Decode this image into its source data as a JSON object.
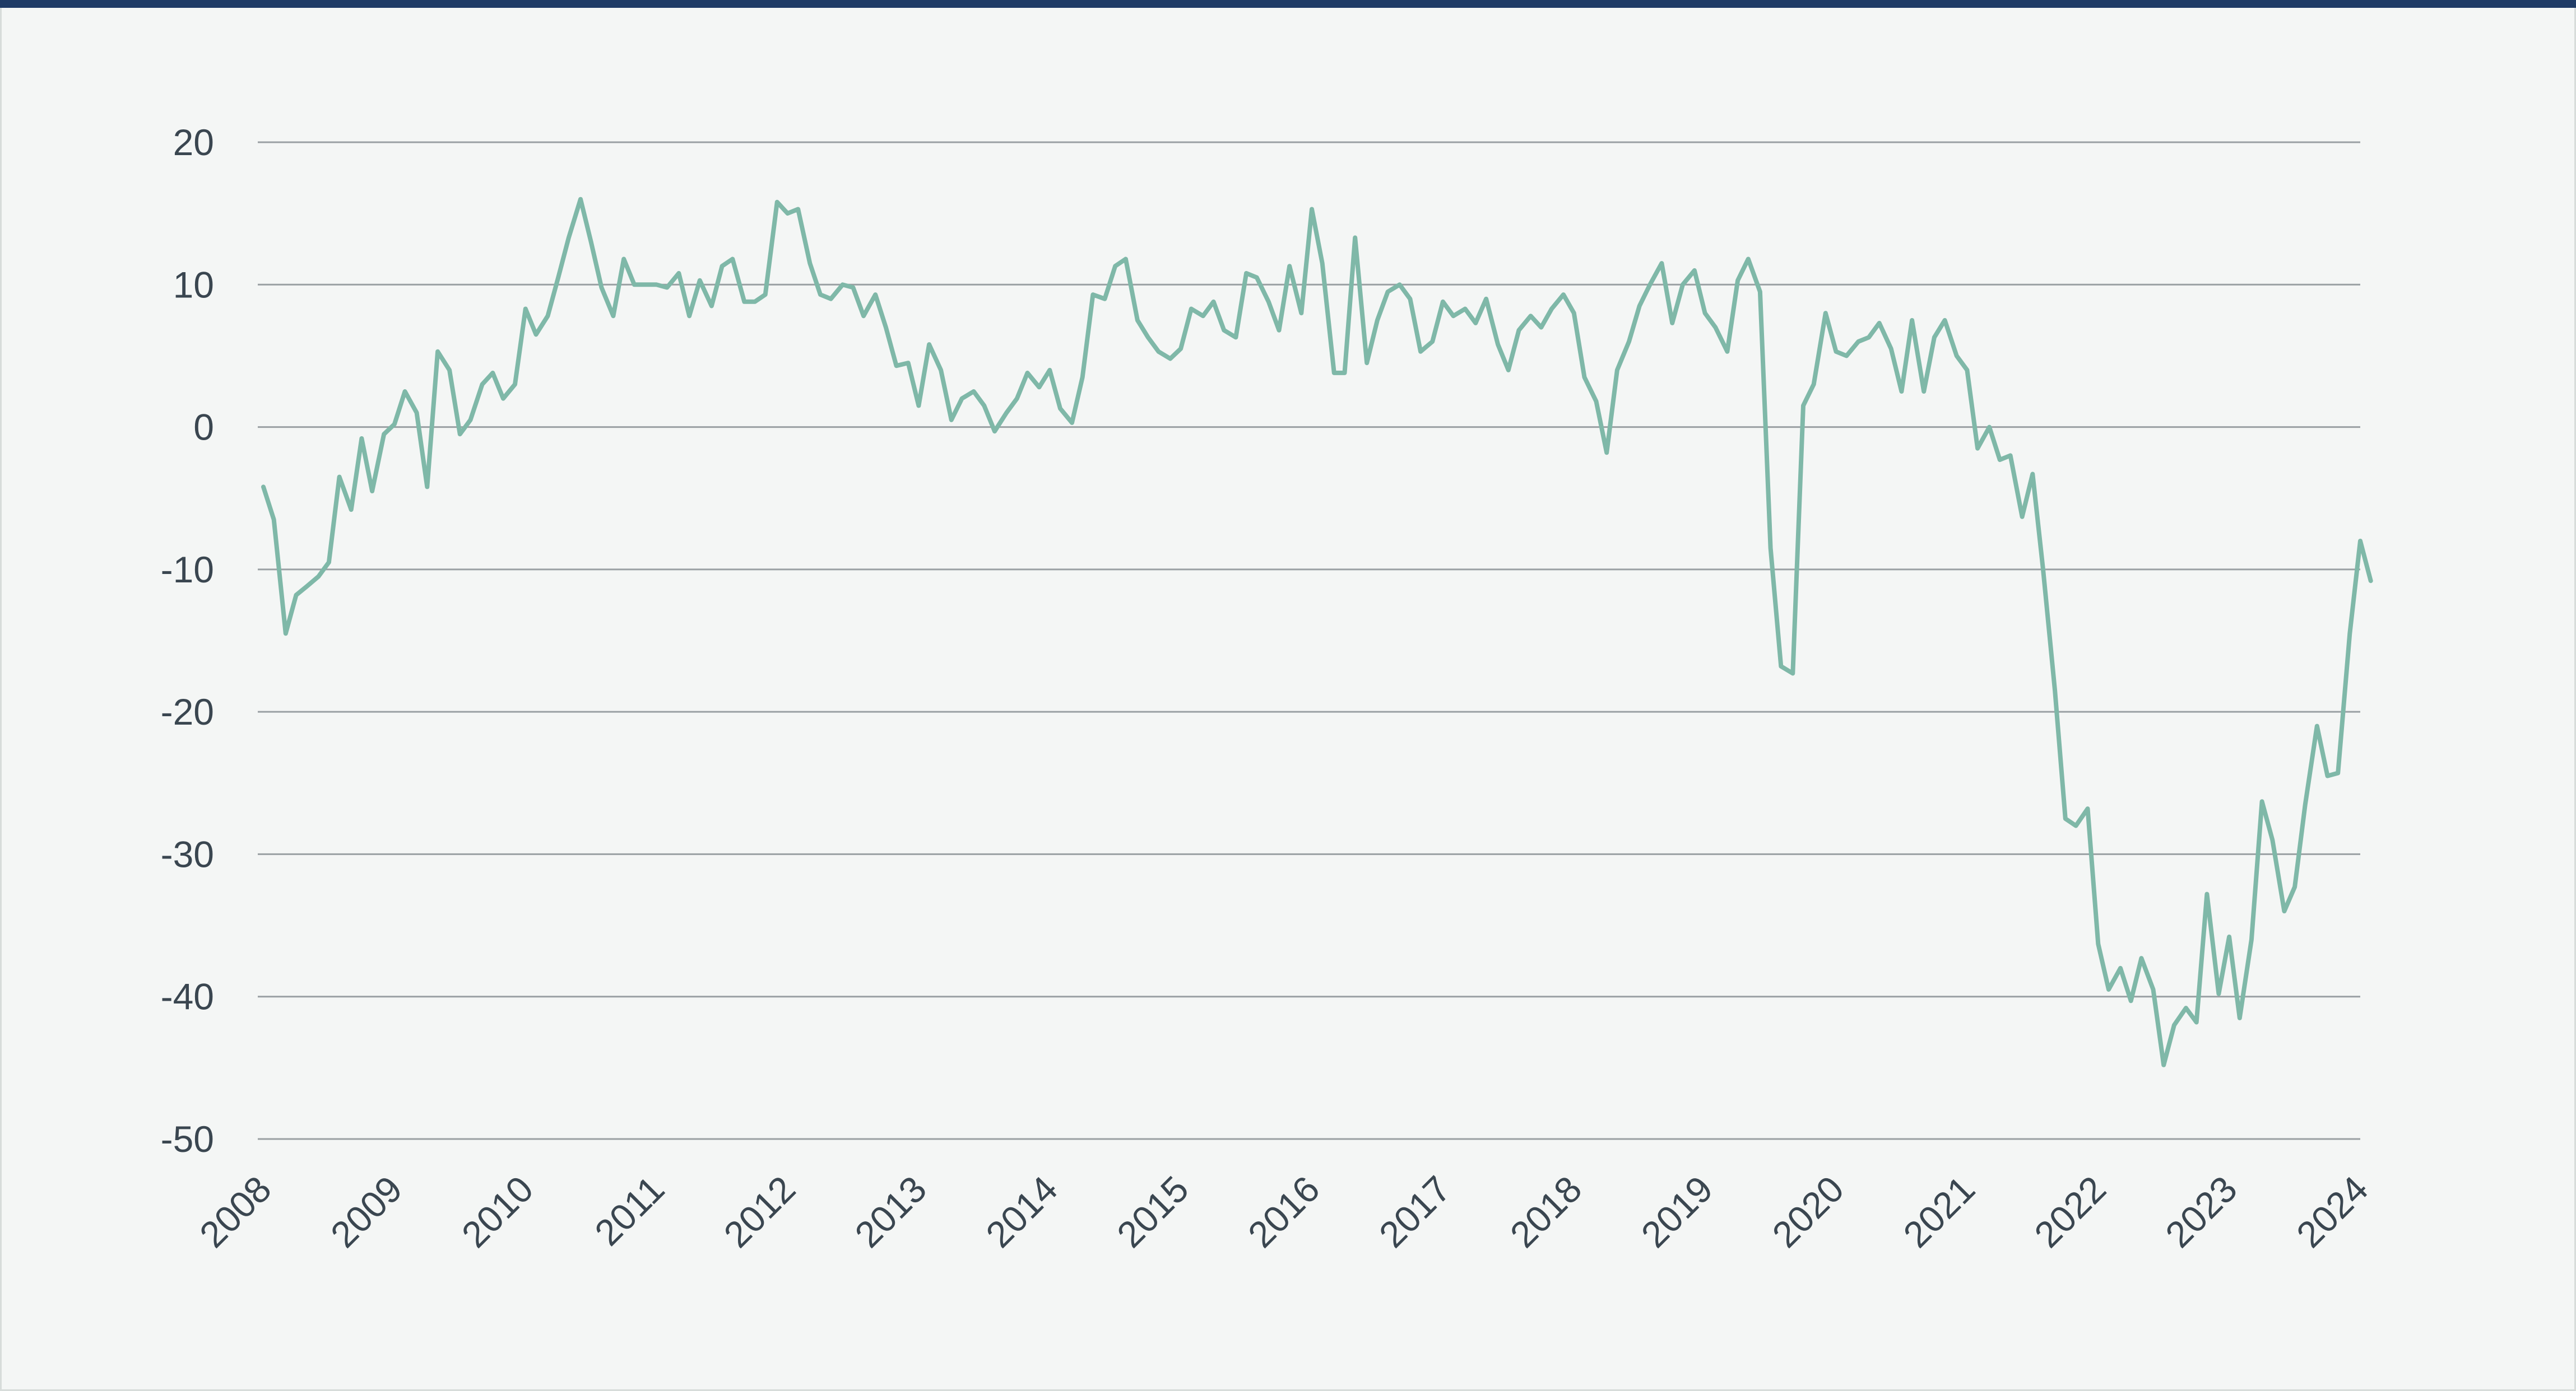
{
  "colors": {
    "background": "#f4f6f5",
    "top_rule": "#1f3b66",
    "line": "#7fb8a8",
    "grid": "#9aa0a3",
    "text": "#3a4650"
  },
  "chart_data": {
    "type": "line",
    "title": "",
    "xlabel": "",
    "ylabel": "",
    "x_range": [
      2008.0,
      2024.0
    ],
    "ylim": [
      -50,
      20
    ],
    "y_ticks": [
      20,
      10,
      0,
      -10,
      -20,
      -30,
      -40,
      -50
    ],
    "x_ticks": [
      "2008",
      "2009",
      "2010",
      "2011",
      "2012",
      "2013",
      "2014",
      "2015",
      "2016",
      "2017",
      "2018",
      "2019",
      "2020",
      "2021",
      "2022",
      "2023",
      "2024"
    ],
    "grid": "horizontal",
    "legend": "none",
    "series": [
      {
        "points": [
          [
            2008.0,
            -4.2
          ],
          [
            2008.08,
            -6.5
          ],
          [
            2008.17,
            -14.5
          ],
          [
            2008.25,
            -11.8
          ],
          [
            2008.33,
            -11.2
          ],
          [
            2008.42,
            -10.5
          ],
          [
            2008.5,
            -9.5
          ],
          [
            2008.58,
            -3.5
          ],
          [
            2008.67,
            -5.8
          ],
          [
            2008.75,
            -0.8
          ],
          [
            2008.83,
            -4.5
          ],
          [
            2008.92,
            -0.5
          ],
          [
            2009.0,
            0.2
          ],
          [
            2009.08,
            2.5
          ],
          [
            2009.17,
            1.0
          ],
          [
            2009.25,
            -4.2
          ],
          [
            2009.33,
            5.3
          ],
          [
            2009.42,
            4.0
          ],
          [
            2009.5,
            -0.5
          ],
          [
            2009.58,
            0.5
          ],
          [
            2009.67,
            3.0
          ],
          [
            2009.75,
            3.8
          ],
          [
            2009.83,
            2.0
          ],
          [
            2009.92,
            3.0
          ],
          [
            2010.0,
            8.3
          ],
          [
            2010.08,
            6.5
          ],
          [
            2010.17,
            7.8
          ],
          [
            2010.25,
            10.5
          ],
          [
            2010.33,
            13.3
          ],
          [
            2010.42,
            16.0
          ],
          [
            2010.5,
            13.0
          ],
          [
            2010.58,
            9.8
          ],
          [
            2010.67,
            7.8
          ],
          [
            2010.75,
            11.8
          ],
          [
            2010.83,
            10.0
          ],
          [
            2010.92,
            10.0
          ],
          [
            2011.0,
            10.0
          ],
          [
            2011.08,
            9.8
          ],
          [
            2011.17,
            10.8
          ],
          [
            2011.25,
            7.8
          ],
          [
            2011.33,
            10.3
          ],
          [
            2011.42,
            8.5
          ],
          [
            2011.5,
            11.3
          ],
          [
            2011.58,
            11.8
          ],
          [
            2011.67,
            8.8
          ],
          [
            2011.75,
            8.8
          ],
          [
            2011.83,
            9.3
          ],
          [
            2011.92,
            15.8
          ],
          [
            2012.0,
            15.0
          ],
          [
            2012.08,
            15.3
          ],
          [
            2012.17,
            11.5
          ],
          [
            2012.25,
            9.3
          ],
          [
            2012.33,
            9.0
          ],
          [
            2012.42,
            10.0
          ],
          [
            2012.5,
            9.8
          ],
          [
            2012.58,
            7.8
          ],
          [
            2012.67,
            9.3
          ],
          [
            2012.75,
            7.0
          ],
          [
            2012.83,
            4.3
          ],
          [
            2012.92,
            4.5
          ],
          [
            2013.0,
            1.5
          ],
          [
            2013.08,
            5.8
          ],
          [
            2013.17,
            4.0
          ],
          [
            2013.25,
            0.5
          ],
          [
            2013.33,
            2.0
          ],
          [
            2013.42,
            2.5
          ],
          [
            2013.5,
            1.5
          ],
          [
            2013.58,
            -0.3
          ],
          [
            2013.67,
            1.0
          ],
          [
            2013.75,
            2.0
          ],
          [
            2013.83,
            3.8
          ],
          [
            2013.92,
            2.8
          ],
          [
            2014.0,
            4.0
          ],
          [
            2014.08,
            1.3
          ],
          [
            2014.17,
            0.3
          ],
          [
            2014.25,
            3.5
          ],
          [
            2014.33,
            9.3
          ],
          [
            2014.42,
            9.0
          ],
          [
            2014.5,
            11.3
          ],
          [
            2014.58,
            11.8
          ],
          [
            2014.67,
            7.5
          ],
          [
            2014.75,
            6.3
          ],
          [
            2014.83,
            5.3
          ],
          [
            2014.92,
            4.8
          ],
          [
            2015.0,
            5.5
          ],
          [
            2015.08,
            8.3
          ],
          [
            2015.17,
            7.8
          ],
          [
            2015.25,
            8.8
          ],
          [
            2015.33,
            6.8
          ],
          [
            2015.42,
            6.3
          ],
          [
            2015.5,
            10.8
          ],
          [
            2015.58,
            10.5
          ],
          [
            2015.67,
            8.8
          ],
          [
            2015.75,
            6.8
          ],
          [
            2015.83,
            11.3
          ],
          [
            2015.92,
            8.0
          ],
          [
            2016.0,
            15.3
          ],
          [
            2016.08,
            11.5
          ],
          [
            2016.17,
            3.8
          ],
          [
            2016.25,
            3.8
          ],
          [
            2016.33,
            13.3
          ],
          [
            2016.42,
            4.5
          ],
          [
            2016.5,
            7.5
          ],
          [
            2016.58,
            9.5
          ],
          [
            2016.67,
            10.0
          ],
          [
            2016.75,
            9.0
          ],
          [
            2016.83,
            5.3
          ],
          [
            2016.92,
            6.0
          ],
          [
            2017.0,
            8.8
          ],
          [
            2017.08,
            7.8
          ],
          [
            2017.17,
            8.3
          ],
          [
            2017.25,
            7.3
          ],
          [
            2017.33,
            9.0
          ],
          [
            2017.42,
            5.8
          ],
          [
            2017.5,
            4.0
          ],
          [
            2017.58,
            6.8
          ],
          [
            2017.67,
            7.8
          ],
          [
            2017.75,
            7.0
          ],
          [
            2017.83,
            8.3
          ],
          [
            2017.92,
            9.3
          ],
          [
            2018.0,
            8.0
          ],
          [
            2018.08,
            3.5
          ],
          [
            2018.17,
            1.8
          ],
          [
            2018.25,
            -1.8
          ],
          [
            2018.33,
            4.0
          ],
          [
            2018.42,
            6.0
          ],
          [
            2018.5,
            8.5
          ],
          [
            2018.58,
            10.0
          ],
          [
            2018.67,
            11.5
          ],
          [
            2018.75,
            7.3
          ],
          [
            2018.83,
            10.0
          ],
          [
            2018.92,
            11.0
          ],
          [
            2019.0,
            8.0
          ],
          [
            2019.08,
            7.0
          ],
          [
            2019.17,
            5.3
          ],
          [
            2019.25,
            10.3
          ],
          [
            2019.33,
            11.8
          ],
          [
            2019.42,
            9.5
          ],
          [
            2019.5,
            -8.5
          ],
          [
            2019.58,
            -16.8
          ],
          [
            2019.67,
            -17.3
          ],
          [
            2019.75,
            1.5
          ],
          [
            2019.83,
            3.0
          ],
          [
            2019.92,
            8.0
          ],
          [
            2020.0,
            5.3
          ],
          [
            2020.08,
            5.0
          ],
          [
            2020.17,
            6.0
          ],
          [
            2020.25,
            6.3
          ],
          [
            2020.33,
            7.3
          ],
          [
            2020.42,
            5.5
          ],
          [
            2020.5,
            2.5
          ],
          [
            2020.58,
            7.5
          ],
          [
            2020.67,
            2.5
          ],
          [
            2020.75,
            6.3
          ],
          [
            2020.83,
            7.5
          ],
          [
            2020.92,
            5.0
          ],
          [
            2021.0,
            4.0
          ],
          [
            2021.08,
            -1.5
          ],
          [
            2021.17,
            0.0
          ],
          [
            2021.25,
            -2.3
          ],
          [
            2021.33,
            -2.0
          ],
          [
            2021.42,
            -6.3
          ],
          [
            2021.5,
            -3.3
          ],
          [
            2021.58,
            -10.0
          ],
          [
            2021.67,
            -18.5
          ],
          [
            2021.75,
            -27.5
          ],
          [
            2021.83,
            -28.0
          ],
          [
            2021.92,
            -26.8
          ],
          [
            2022.0,
            -36.3
          ],
          [
            2022.08,
            -39.5
          ],
          [
            2022.17,
            -38.0
          ],
          [
            2022.25,
            -40.3
          ],
          [
            2022.33,
            -37.3
          ],
          [
            2022.42,
            -39.5
          ],
          [
            2022.5,
            -44.8
          ],
          [
            2022.58,
            -42.0
          ],
          [
            2022.67,
            -40.8
          ],
          [
            2022.75,
            -41.8
          ],
          [
            2022.83,
            -32.8
          ],
          [
            2022.92,
            -39.8
          ],
          [
            2023.0,
            -35.8
          ],
          [
            2023.08,
            -41.5
          ],
          [
            2023.17,
            -36.0
          ],
          [
            2023.25,
            -26.3
          ],
          [
            2023.33,
            -29.0
          ],
          [
            2023.42,
            -34.0
          ],
          [
            2023.5,
            -32.3
          ],
          [
            2023.58,
            -26.5
          ],
          [
            2023.67,
            -21.0
          ],
          [
            2023.75,
            -24.5
          ],
          [
            2023.83,
            -24.3
          ],
          [
            2023.92,
            -14.5
          ],
          [
            2024.0,
            -8.0
          ],
          [
            2024.08,
            -10.8
          ]
        ]
      }
    ]
  }
}
